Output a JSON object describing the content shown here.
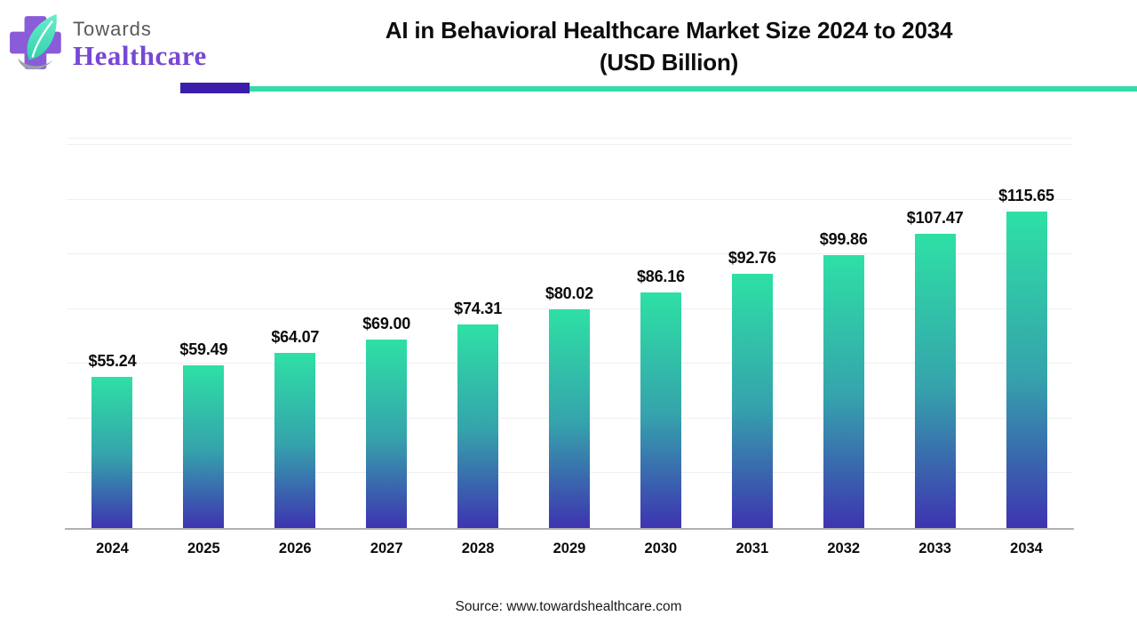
{
  "header": {
    "logo": {
      "word1": "Towards",
      "word2": "Healthcare"
    },
    "title_line1": "AI in Behavioral Healthcare Market Size 2024 to 2034",
    "title_line2": "(USD Billion)"
  },
  "chart_data": {
    "type": "bar",
    "title": "AI in Behavioral Healthcare Market Size 2024 to 2034 (USD Billion)",
    "categories": [
      "2024",
      "2025",
      "2026",
      "2027",
      "2028",
      "2029",
      "2030",
      "2031",
      "2032",
      "2033",
      "2034"
    ],
    "values": [
      55.24,
      59.49,
      64.07,
      69.0,
      74.31,
      80.02,
      86.16,
      92.76,
      99.86,
      107.47,
      115.65
    ],
    "value_labels": [
      "$55.24",
      "$59.49",
      "$64.07",
      "$69.00",
      "$74.31",
      "$80.02",
      "$86.16",
      "$92.76",
      "$99.86",
      "$107.47",
      "$115.65"
    ],
    "xlabel": "",
    "ylabel": "",
    "ylim": [
      0,
      142.3
    ],
    "gridline_step": 20,
    "grid": true,
    "legend": false,
    "colors": {
      "bar_top": "#2ee0a5",
      "bar_mid": "#35a3ac",
      "bar_bottom": "#3e34b0",
      "axis_line": "#b0b0b0",
      "gridline": "#efefef",
      "accent_purple": "#3a1daa",
      "accent_teal": "#35dcaa",
      "logo_purple": "#8a5cd8",
      "logo_leaf_light": "#6ceccb",
      "logo_leaf_dark": "#2fd3ac",
      "towards_text": "#58595b",
      "healthcare_text": "#7747d6"
    }
  },
  "footer": {
    "source": "Source: www.towardshealthcare.com"
  }
}
